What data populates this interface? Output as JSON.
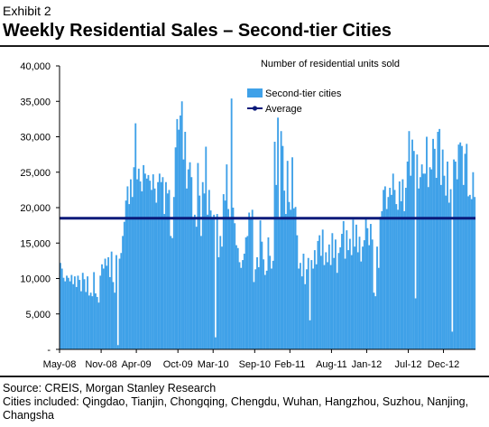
{
  "header": {
    "exhibit": "Exhibit 2",
    "title": "Weekly Residential Sales – Second-tier Cities"
  },
  "footer": {
    "source": "Source: CREIS, Morgan Stanley Research",
    "cities": "Cities included: Qingdao, Tianjin, Chongqing, Chengdu, Wuhan, Hangzhou, Suzhou, Nanjing, Changsha"
  },
  "colors": {
    "bar": "#3fa1e8",
    "average": "#0a1a7a",
    "rule": "#1a1a1a"
  },
  "chart_data": {
    "type": "bar",
    "title": "Number of residential units sold",
    "ylim": [
      0,
      40000
    ],
    "yticks": [
      0,
      5000,
      10000,
      15000,
      20000,
      25000,
      30000,
      35000,
      40000
    ],
    "ytick_labels": [
      "-",
      "5,000",
      "10,000",
      "15,000",
      "20,000",
      "25,000",
      "30,000",
      "35,000",
      "40,000"
    ],
    "xtick_labels": [
      "May-08",
      "Nov-08",
      "Apr-09",
      "Oct-09",
      "Mar-10",
      "Sep-10",
      "Feb-11",
      "Aug-11",
      "Jan-12",
      "Jul-12",
      "Dec-12"
    ],
    "xtick_positions": [
      0,
      26,
      48,
      74,
      96,
      122,
      144,
      170,
      192,
      218,
      240
    ],
    "legend": {
      "position": "top-right",
      "series_label": "Second-tier cities",
      "average_label": "Average"
    },
    "grid": false,
    "average": 18500,
    "series": [
      {
        "name": "Second-tier cities",
        "values": [
          12200,
          11400,
          10100,
          9600,
          10400,
          10100,
          9600,
          10500,
          9200,
          10300,
          8800,
          10400,
          9800,
          8200,
          10800,
          9900,
          8100,
          10300,
          7600,
          8000,
          7500,
          10900,
          7900,
          7400,
          6600,
          10400,
          12000,
          11400,
          12800,
          11800,
          13000,
          10200,
          13800,
          9500,
          8000,
          13300,
          600,
          12800,
          13600,
          16000,
          18000,
          21000,
          23000,
          20500,
          24000,
          21500,
          25700,
          31900,
          24000,
          25500,
          23700,
          22300,
          26000,
          24800,
          24100,
          24600,
          23800,
          22500,
          24700,
          22700,
          20700,
          23600,
          24800,
          23600,
          24300,
          19100,
          23600,
          22000,
          22500,
          16000,
          15700,
          21500,
          28500,
          32500,
          31000,
          33000,
          35000,
          26800,
          30700,
          22700,
          25400,
          26400,
          24300,
          18500,
          19000,
          17300,
          26300,
          21700,
          16000,
          23600,
          22000,
          28600,
          19000,
          22500,
          19600,
          18400,
          19000,
          1700,
          19100,
          13000,
          16000,
          14500,
          21900,
          21000,
          26100,
          19800,
          18400,
          35400,
          20000,
          17800,
          14700,
          14300,
          12300,
          11500,
          12600,
          13500,
          15800,
          16000,
          19300,
          18600,
          19700,
          9500,
          11300,
          13000,
          11600,
          18200,
          15200,
          12700,
          10500,
          11100,
          15800,
          13200,
          11400,
          12500,
          29300,
          23200,
          32700,
          18600,
          30800,
          28700,
          22400,
          19100,
          26600,
          20800,
          19700,
          27100,
          19900,
          20100,
          16100,
          11400,
          12200,
          10300,
          13500,
          9200,
          11300,
          12900,
          4100,
          12600,
          11400,
          14000,
          12000,
          15300,
          16100,
          13200,
          16900,
          11900,
          13700,
          12300,
          14800,
          11900,
          16400,
          12900,
          15500,
          10800,
          13600,
          14400,
          16300,
          18100,
          12800,
          16800,
          14000,
          15600,
          13300,
          18300,
          14500,
          17600,
          13700,
          15900,
          12400,
          14500,
          15400,
          18500,
          17100,
          14700,
          17700,
          15500,
          8000,
          7500,
          14500,
          11500,
          18700,
          19500,
          22500,
          23000,
          19800,
          21500,
          22800,
          21800,
          24800,
          22500,
          20500,
          19700,
          23700,
          20900,
          24000,
          19500,
          22800,
          26500,
          30800,
          24500,
          29600,
          28000,
          7200,
          27500,
          22700,
          24300,
          26100,
          24800,
          24800,
          30000,
          22900,
          25700,
          25400,
          29700,
          28300,
          24200,
          30700,
          31100,
          23200,
          28200,
          24500,
          21700,
          26500,
          20700,
          22600,
          2500,
          26800,
          26500,
          24000,
          28900,
          29200,
          28700,
          23200,
          27600,
          29000,
          21600,
          21800,
          21200,
          25000,
          21500
        ]
      }
    ]
  }
}
